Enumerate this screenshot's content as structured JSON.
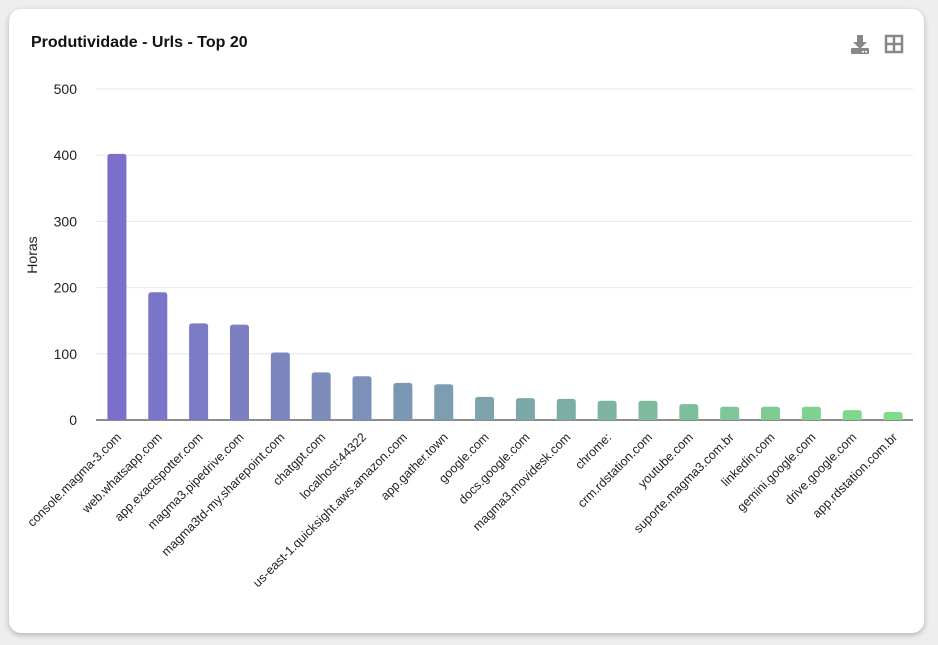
{
  "header": {
    "title": "Produtividade - Urls - Top 20",
    "icons": [
      "download-icon",
      "grid-icon"
    ]
  },
  "chart_data": {
    "type": "bar",
    "title": "Produtividade - Urls - Top 20",
    "xlabel": "",
    "ylabel": "Horas",
    "ylim": [
      0,
      500
    ],
    "yticks": [
      0,
      100,
      200,
      300,
      400,
      500
    ],
    "grid": true,
    "categories": [
      "console.magma-3.com",
      "web.whatsapp.com",
      "app.exactspotter.com",
      "magma3.pipedrive.com",
      "magma3td-my.sharepoint.com",
      "chatgpt.com",
      "localhost:44322",
      "us-east-1.quicksight.aws.amazon.com",
      "app.gather.town",
      "google.com",
      "docs.google.com",
      "magma3.movidesk.com",
      "chrome:",
      "crm.rdstation.com",
      "youtube.com",
      "suporte.magma3.com.br",
      "linkedin.com",
      "gemini.google.com",
      "drive.google.com",
      "app.rdstation.com.br"
    ],
    "values": [
      402,
      193,
      146,
      144,
      102,
      72,
      66,
      56,
      54,
      35,
      33,
      32,
      29,
      29,
      24,
      20,
      20,
      20,
      15,
      12
    ],
    "color_start": "#7b6fcc",
    "color_end": "#7fdc8a"
  }
}
